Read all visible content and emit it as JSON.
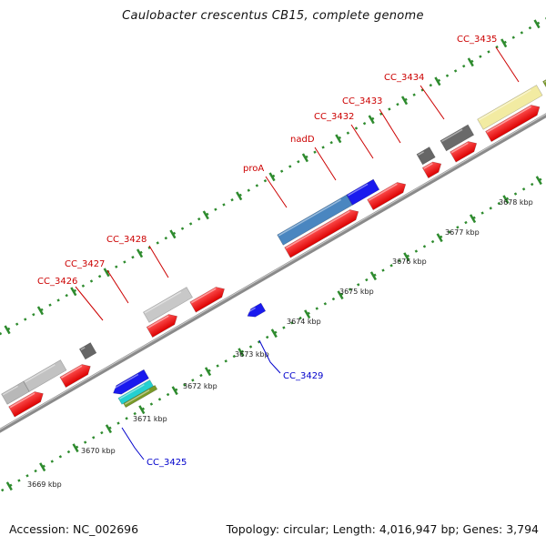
{
  "title": "Caulobacter crescentus CB15, complete genome",
  "footer": {
    "accession": "Accession: NC_002696",
    "topology": "Topology: circular; Length: 4,016,947 bp; Genes: 3,794"
  },
  "colors": {
    "forward_label": "#cc0000",
    "reverse_label": "#0000cc",
    "backbone": "#8a8a8a",
    "tick": "#2e8b2e"
  },
  "scale_labels": [
    "3669 kbp",
    "3670 kbp",
    "3671 kbp",
    "3672 kbp",
    "3673 kbp",
    "3674 kbp",
    "3675 kbp",
    "3676 kbp",
    "3677 kbp",
    "3678 kbp"
  ],
  "gene_labels": {
    "forward": [
      "CC_3426",
      "CC_3427",
      "CC_3428",
      "proA",
      "nadD",
      "CC_3432",
      "CC_3433",
      "CC_3434",
      "CC_3435"
    ],
    "reverse": [
      "CC_3425",
      "CC_3429"
    ]
  }
}
